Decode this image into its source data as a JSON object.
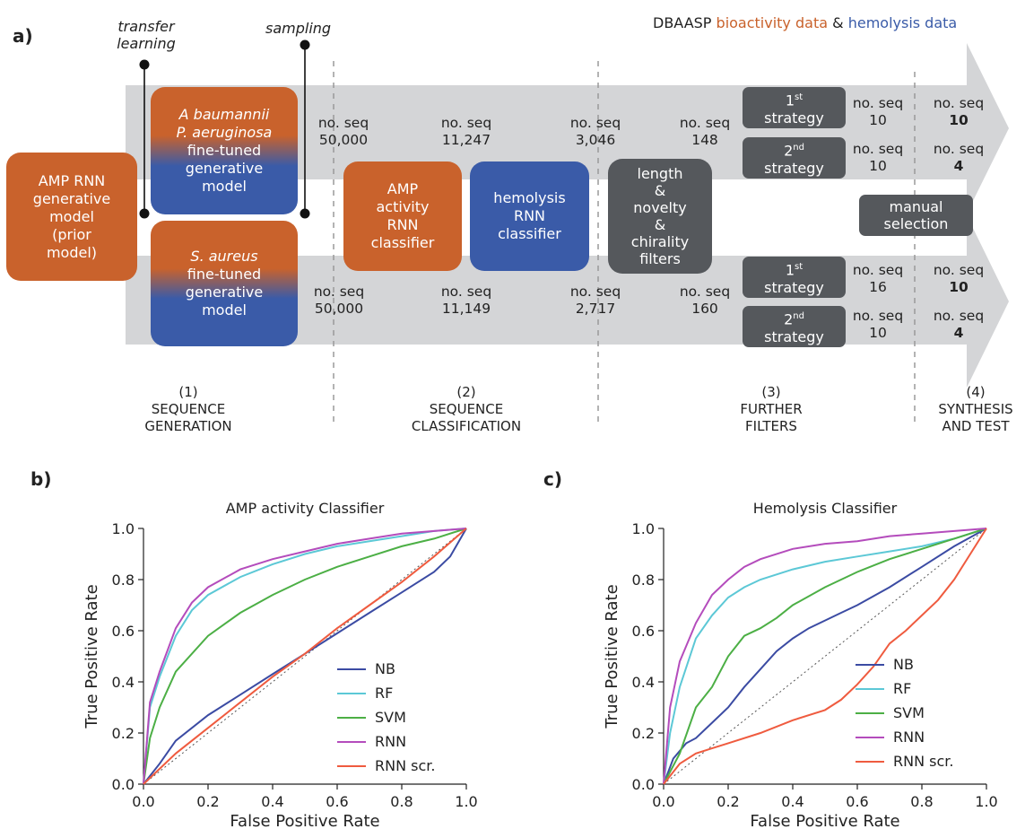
{
  "panel_a": {
    "label": "a)",
    "header": {
      "dbaasp": "DBAASP",
      "bio": "bioactivity data",
      "amp": "&",
      "hemo": "hemolysis data"
    },
    "transfer_learning": [
      "transfer",
      "learning"
    ],
    "sampling": "sampling",
    "prior_model": [
      "AMP RNN",
      "generative",
      "model",
      "(prior",
      "model)"
    ],
    "top_model": [
      "A baumannii",
      "P. aeruginosa",
      "fine-tuned",
      "generative",
      "model"
    ],
    "bottom_model": [
      "S. aureus",
      "fine-tuned",
      "generative",
      "model"
    ],
    "amp_classifier": [
      "AMP",
      "activity",
      "RNN",
      "classifier"
    ],
    "hemo_classifier": [
      "hemolysis",
      "RNN",
      "classifier"
    ],
    "filters_box": [
      "length",
      "&",
      "novelty",
      "&",
      "chirality",
      "filters"
    ],
    "strategy_1": [
      "1",
      "st",
      "strategy"
    ],
    "strategy_2": [
      "2",
      "nd",
      "strategy"
    ],
    "manual_selection": [
      "manual",
      "selection"
    ],
    "seq_label": "no. seq",
    "top_counts": [
      "50,000",
      "11,247",
      "3,046",
      "148"
    ],
    "bottom_counts": [
      "50,000",
      "11,149",
      "2,717",
      "160"
    ],
    "top_strategy_counts": [
      "10",
      "10"
    ],
    "top_final": [
      "10",
      "4"
    ],
    "bottom_strategy_counts": [
      "16",
      "10"
    ],
    "bottom_final": [
      "10",
      "4"
    ],
    "stages": [
      [
        "(1)",
        "SEQUENCE",
        "GENERATION"
      ],
      [
        "(2)",
        "SEQUENCE",
        "CLASSIFICATION"
      ],
      [
        "(3)",
        "FURTHER",
        "FILTERS"
      ],
      [
        "(4)",
        "SYNTHESIS",
        "AND TEST"
      ]
    ],
    "colors": {
      "orange": "#c9622c",
      "blue": "#3a5ba8",
      "dark": "#55585c",
      "arrow": "#d4d5d7"
    }
  },
  "chart_data": [
    {
      "panel": "b)",
      "type": "line",
      "title": "AMP activity Classifier",
      "xlabel": "False Positive Rate",
      "ylabel": "True Positive Rate",
      "xlim": [
        0,
        1
      ],
      "ylim": [
        0,
        1
      ],
      "ticks": [
        "0.0",
        "0.2",
        "0.4",
        "0.6",
        "0.8",
        "1.0"
      ],
      "legend_placement": "lower-right",
      "series": [
        {
          "name": "NB",
          "color": "#3b4ba3",
          "x": [
            0,
            0.05,
            0.1,
            0.2,
            0.3,
            0.4,
            0.5,
            0.6,
            0.7,
            0.8,
            0.9,
            0.95,
            1
          ],
          "y": [
            0,
            0.08,
            0.17,
            0.27,
            0.35,
            0.43,
            0.51,
            0.59,
            0.67,
            0.75,
            0.83,
            0.89,
            1
          ]
        },
        {
          "name": "RF",
          "color": "#5cc8d6",
          "x": [
            0,
            0.02,
            0.05,
            0.1,
            0.15,
            0.2,
            0.3,
            0.4,
            0.5,
            0.6,
            0.7,
            0.8,
            0.9,
            1
          ],
          "y": [
            0,
            0.3,
            0.42,
            0.58,
            0.68,
            0.74,
            0.81,
            0.86,
            0.9,
            0.93,
            0.95,
            0.97,
            0.99,
            1
          ]
        },
        {
          "name": "SVM",
          "color": "#4caf45",
          "x": [
            0,
            0.02,
            0.05,
            0.1,
            0.2,
            0.3,
            0.4,
            0.5,
            0.6,
            0.7,
            0.8,
            0.9,
            1
          ],
          "y": [
            0,
            0.18,
            0.3,
            0.44,
            0.58,
            0.67,
            0.74,
            0.8,
            0.85,
            0.89,
            0.93,
            0.96,
            1
          ]
        },
        {
          "name": "RNN",
          "color": "#b44cbc",
          "x": [
            0,
            0.02,
            0.05,
            0.1,
            0.15,
            0.2,
            0.3,
            0.4,
            0.5,
            0.6,
            0.7,
            0.8,
            0.9,
            1
          ],
          "y": [
            0,
            0.32,
            0.44,
            0.61,
            0.71,
            0.77,
            0.84,
            0.88,
            0.91,
            0.94,
            0.96,
            0.98,
            0.99,
            1
          ]
        },
        {
          "name": "RNN scr.",
          "color": "#ef5b3f",
          "x": [
            0,
            0.1,
            0.2,
            0.3,
            0.4,
            0.5,
            0.6,
            0.7,
            0.8,
            0.9,
            1
          ],
          "y": [
            0,
            0.12,
            0.22,
            0.32,
            0.42,
            0.51,
            0.61,
            0.7,
            0.79,
            0.89,
            1
          ]
        }
      ]
    },
    {
      "panel": "c)",
      "type": "line",
      "title": "Hemolysis Classifier",
      "xlabel": "False Positive Rate",
      "ylabel": "True Positive Rate",
      "xlim": [
        0,
        1
      ],
      "ylim": [
        0,
        1
      ],
      "ticks": [
        "0.0",
        "0.2",
        "0.4",
        "0.6",
        "0.8",
        "1.0"
      ],
      "legend_placement": "lower-right",
      "series": [
        {
          "name": "NB",
          "color": "#3b4ba3",
          "x": [
            0,
            0.03,
            0.07,
            0.1,
            0.15,
            0.2,
            0.25,
            0.3,
            0.35,
            0.4,
            0.45,
            0.5,
            0.55,
            0.6,
            0.7,
            0.8,
            0.9,
            1
          ],
          "y": [
            0,
            0.1,
            0.16,
            0.18,
            0.24,
            0.3,
            0.38,
            0.45,
            0.52,
            0.57,
            0.61,
            0.64,
            0.67,
            0.7,
            0.77,
            0.85,
            0.93,
            1
          ]
        },
        {
          "name": "RF",
          "color": "#5cc8d6",
          "x": [
            0,
            0.02,
            0.05,
            0.1,
            0.15,
            0.2,
            0.25,
            0.3,
            0.4,
            0.5,
            0.6,
            0.7,
            0.8,
            0.9,
            1
          ],
          "y": [
            0,
            0.2,
            0.38,
            0.57,
            0.66,
            0.73,
            0.77,
            0.8,
            0.84,
            0.87,
            0.89,
            0.91,
            0.93,
            0.96,
            1
          ]
        },
        {
          "name": "SVM",
          "color": "#4caf45",
          "x": [
            0,
            0.05,
            0.1,
            0.15,
            0.2,
            0.25,
            0.3,
            0.35,
            0.4,
            0.5,
            0.6,
            0.7,
            0.8,
            0.9,
            1
          ],
          "y": [
            0,
            0.12,
            0.3,
            0.38,
            0.5,
            0.58,
            0.61,
            0.65,
            0.7,
            0.77,
            0.83,
            0.88,
            0.92,
            0.96,
            1
          ]
        },
        {
          "name": "RNN",
          "color": "#b44cbc",
          "x": [
            0,
            0.02,
            0.05,
            0.1,
            0.15,
            0.2,
            0.25,
            0.3,
            0.4,
            0.5,
            0.6,
            0.7,
            0.8,
            0.9,
            1
          ],
          "y": [
            0,
            0.3,
            0.48,
            0.63,
            0.74,
            0.8,
            0.85,
            0.88,
            0.92,
            0.94,
            0.95,
            0.97,
            0.98,
            0.99,
            1
          ]
        },
        {
          "name": "RNN scr.",
          "color": "#ef5b3f",
          "x": [
            0,
            0.05,
            0.1,
            0.15,
            0.2,
            0.3,
            0.4,
            0.5,
            0.55,
            0.6,
            0.65,
            0.7,
            0.75,
            0.8,
            0.85,
            0.9,
            0.95,
            1
          ],
          "y": [
            0,
            0.08,
            0.12,
            0.14,
            0.16,
            0.2,
            0.25,
            0.29,
            0.33,
            0.39,
            0.46,
            0.55,
            0.6,
            0.66,
            0.72,
            0.8,
            0.9,
            1
          ]
        }
      ]
    }
  ]
}
